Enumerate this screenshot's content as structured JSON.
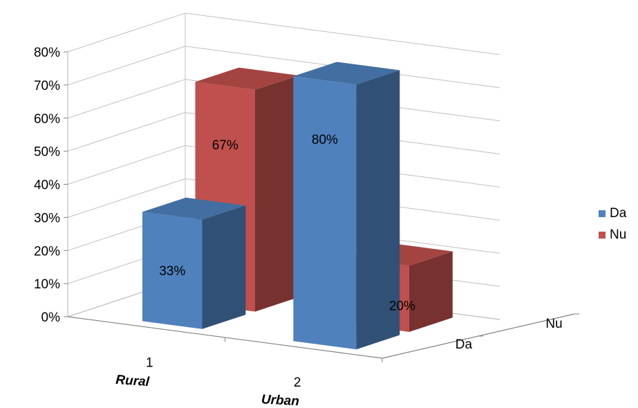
{
  "chart_data": {
    "type": "bar",
    "categories": [
      "1",
      "2"
    ],
    "category_labels": [
      "Rural",
      "Urban"
    ],
    "depth_labels": [
      "Da",
      "Nu"
    ],
    "series": [
      {
        "name": "Da",
        "values": [
          33,
          80
        ],
        "labels": [
          "33%",
          "80%"
        ],
        "color": "#4f81bd"
      },
      {
        "name": "Nu",
        "values": [
          67,
          20
        ],
        "labels": [
          "67%",
          "20%"
        ],
        "color": "#c0504d"
      }
    ],
    "ylim": [
      0,
      80
    ],
    "yticks": [
      "0%",
      "10%",
      "20%",
      "30%",
      "40%",
      "50%",
      "60%",
      "70%",
      "80%"
    ],
    "grid": true,
    "legend_position": "right",
    "style": "3d-column"
  }
}
